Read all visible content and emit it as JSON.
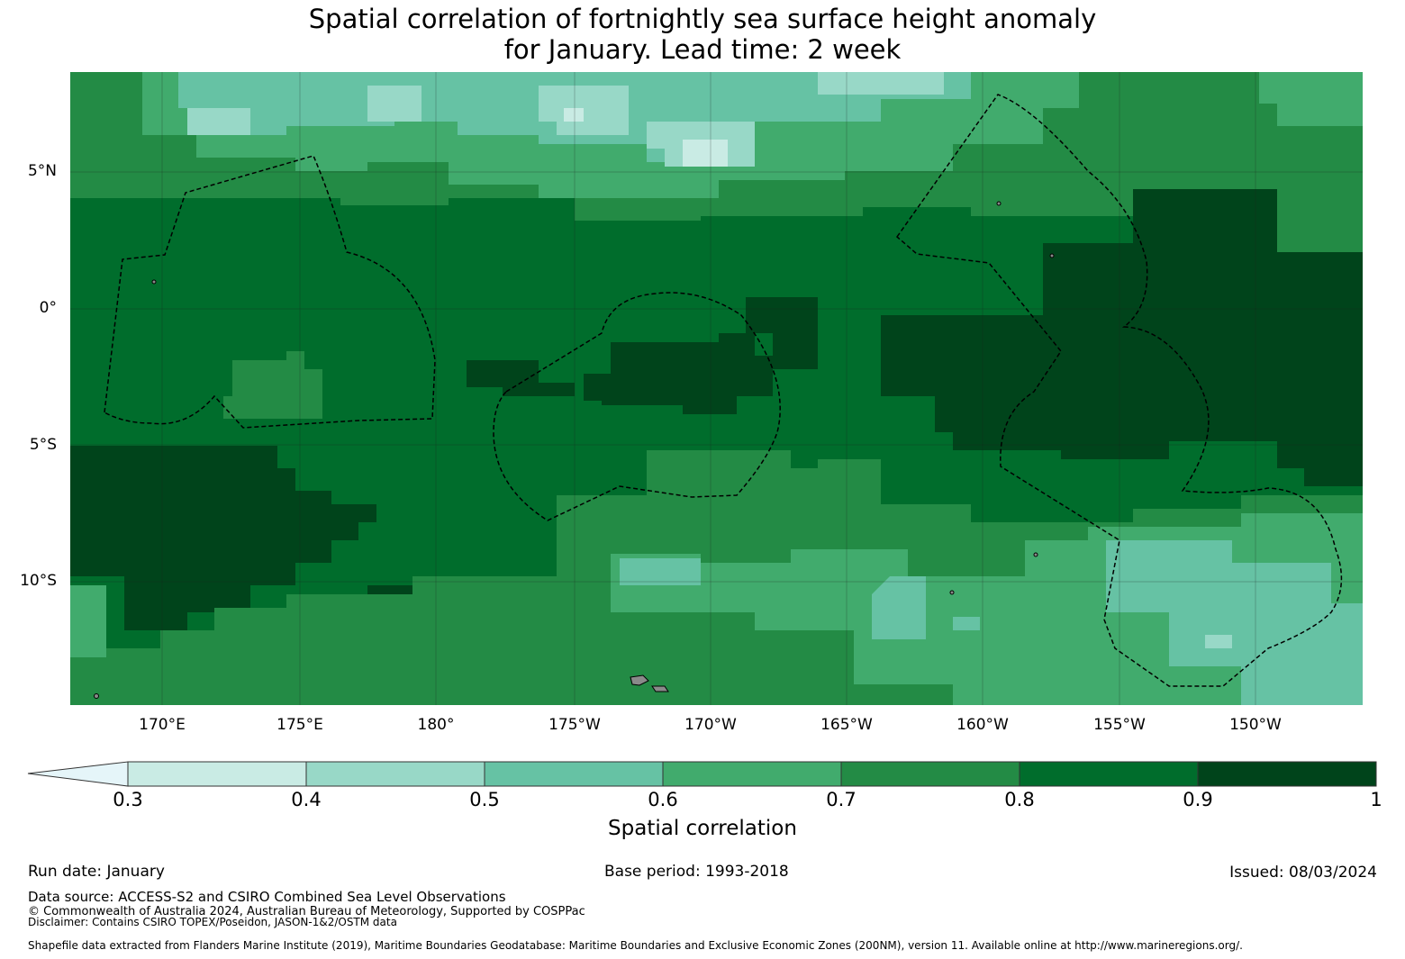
{
  "title": {
    "line1": "Spatial correlation of fortnightly sea surface height anomaly",
    "line2": "for January. Lead time: 2 week"
  },
  "map": {
    "lat_labels": [
      "5°N",
      "0°",
      "5°S",
      "10°S"
    ],
    "lon_labels": [
      "170°E",
      "175°E",
      "180°",
      "175°W",
      "170°W",
      "165°W",
      "160°W",
      "155°W",
      "150°W"
    ],
    "colors": {
      "ocean_base": "#006c2f",
      "land": "#8a8a8a"
    }
  },
  "colorbar": {
    "ticks": [
      "0.3",
      "0.4",
      "0.5",
      "0.6",
      "0.7",
      "0.8",
      "0.9",
      "1"
    ],
    "label": "Spatial correlation",
    "bins": [
      {
        "range": "<0.3",
        "color": "#e5f5f9"
      },
      {
        "range": "0.3-0.4",
        "color": "#c9ebe4"
      },
      {
        "range": "0.4-0.5",
        "color": "#98d8c7"
      },
      {
        "range": "0.5-0.6",
        "color": "#66c2a4"
      },
      {
        "range": "0.6-0.7",
        "color": "#41ab6d"
      },
      {
        "range": "0.7-0.8",
        "color": "#238b45"
      },
      {
        "range": "0.8-0.9",
        "color": "#006d2c"
      },
      {
        "range": "0.9-1",
        "color": "#00441b"
      }
    ]
  },
  "footer": {
    "run_date": "Run date: January",
    "base_period": "Base period: 1993-2018",
    "issued": "Issued: 08/03/2024",
    "data_source": "Data source: ACCESS-S2 and CSIRO Combined Sea Level Observations",
    "copyright": "© Commonwealth of Australia 2024, Australian Bureau of Meteorology, Supported by COSPPac",
    "disclaimer": "Disclaimer: Contains CSIRO TOPEX/Poseidon, JASON-1&2/OSTM data",
    "shapefile": "Shapefile data extracted from Flanders Marine Institute (2019), Maritime Boundaries Geodatabase: Maritime Boundaries and Exclusive Economic Zones (200NM), version 11. Available online at http://www.marineregions.org/."
  }
}
